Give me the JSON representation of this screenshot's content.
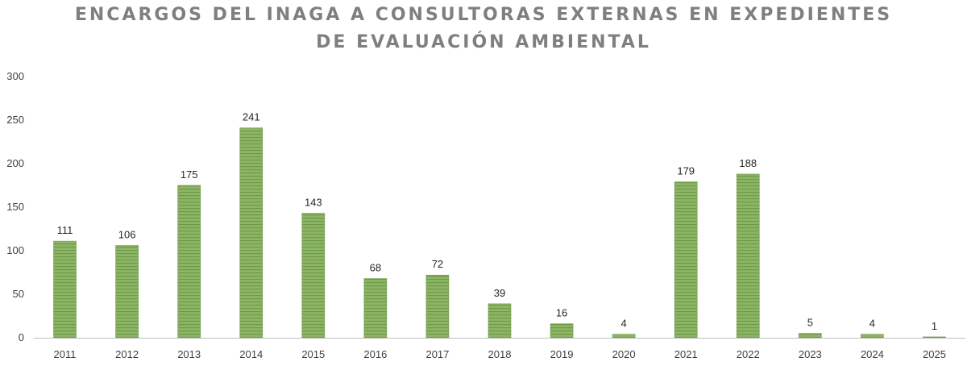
{
  "chart_data": {
    "type": "bar",
    "title_lines": [
      "ENCARGOS DEL INAGA A CONSULTORAS EXTERNAS EN EXPEDIENTES",
      "DE EVALUACIÓN AMBIENTAL"
    ],
    "xlabel": "",
    "ylabel": "",
    "categories": [
      "2011",
      "2012",
      "2013",
      "2014",
      "2015",
      "2016",
      "2017",
      "2018",
      "2019",
      "2020",
      "2021",
      "2022",
      "2023",
      "2024",
      "2025"
    ],
    "values": [
      111,
      106,
      175,
      241,
      143,
      68,
      72,
      39,
      16,
      4,
      179,
      188,
      5,
      4,
      1
    ],
    "data_labels": [
      "111",
      "106",
      "175",
      "241",
      "143",
      "68",
      "72",
      "39",
      "16",
      "4",
      "179",
      "188",
      "5",
      "4",
      "1"
    ],
    "ylim": [
      0,
      300
    ],
    "yticks": [
      "0",
      "50",
      "100",
      "150",
      "200",
      "250",
      "300"
    ],
    "grid": false,
    "legend": "none",
    "bar_color": "#8db566",
    "bar_stripe_color": "#6f9a47",
    "axis_color": "#bfbfbf",
    "title_color": "#7f7f7f"
  }
}
